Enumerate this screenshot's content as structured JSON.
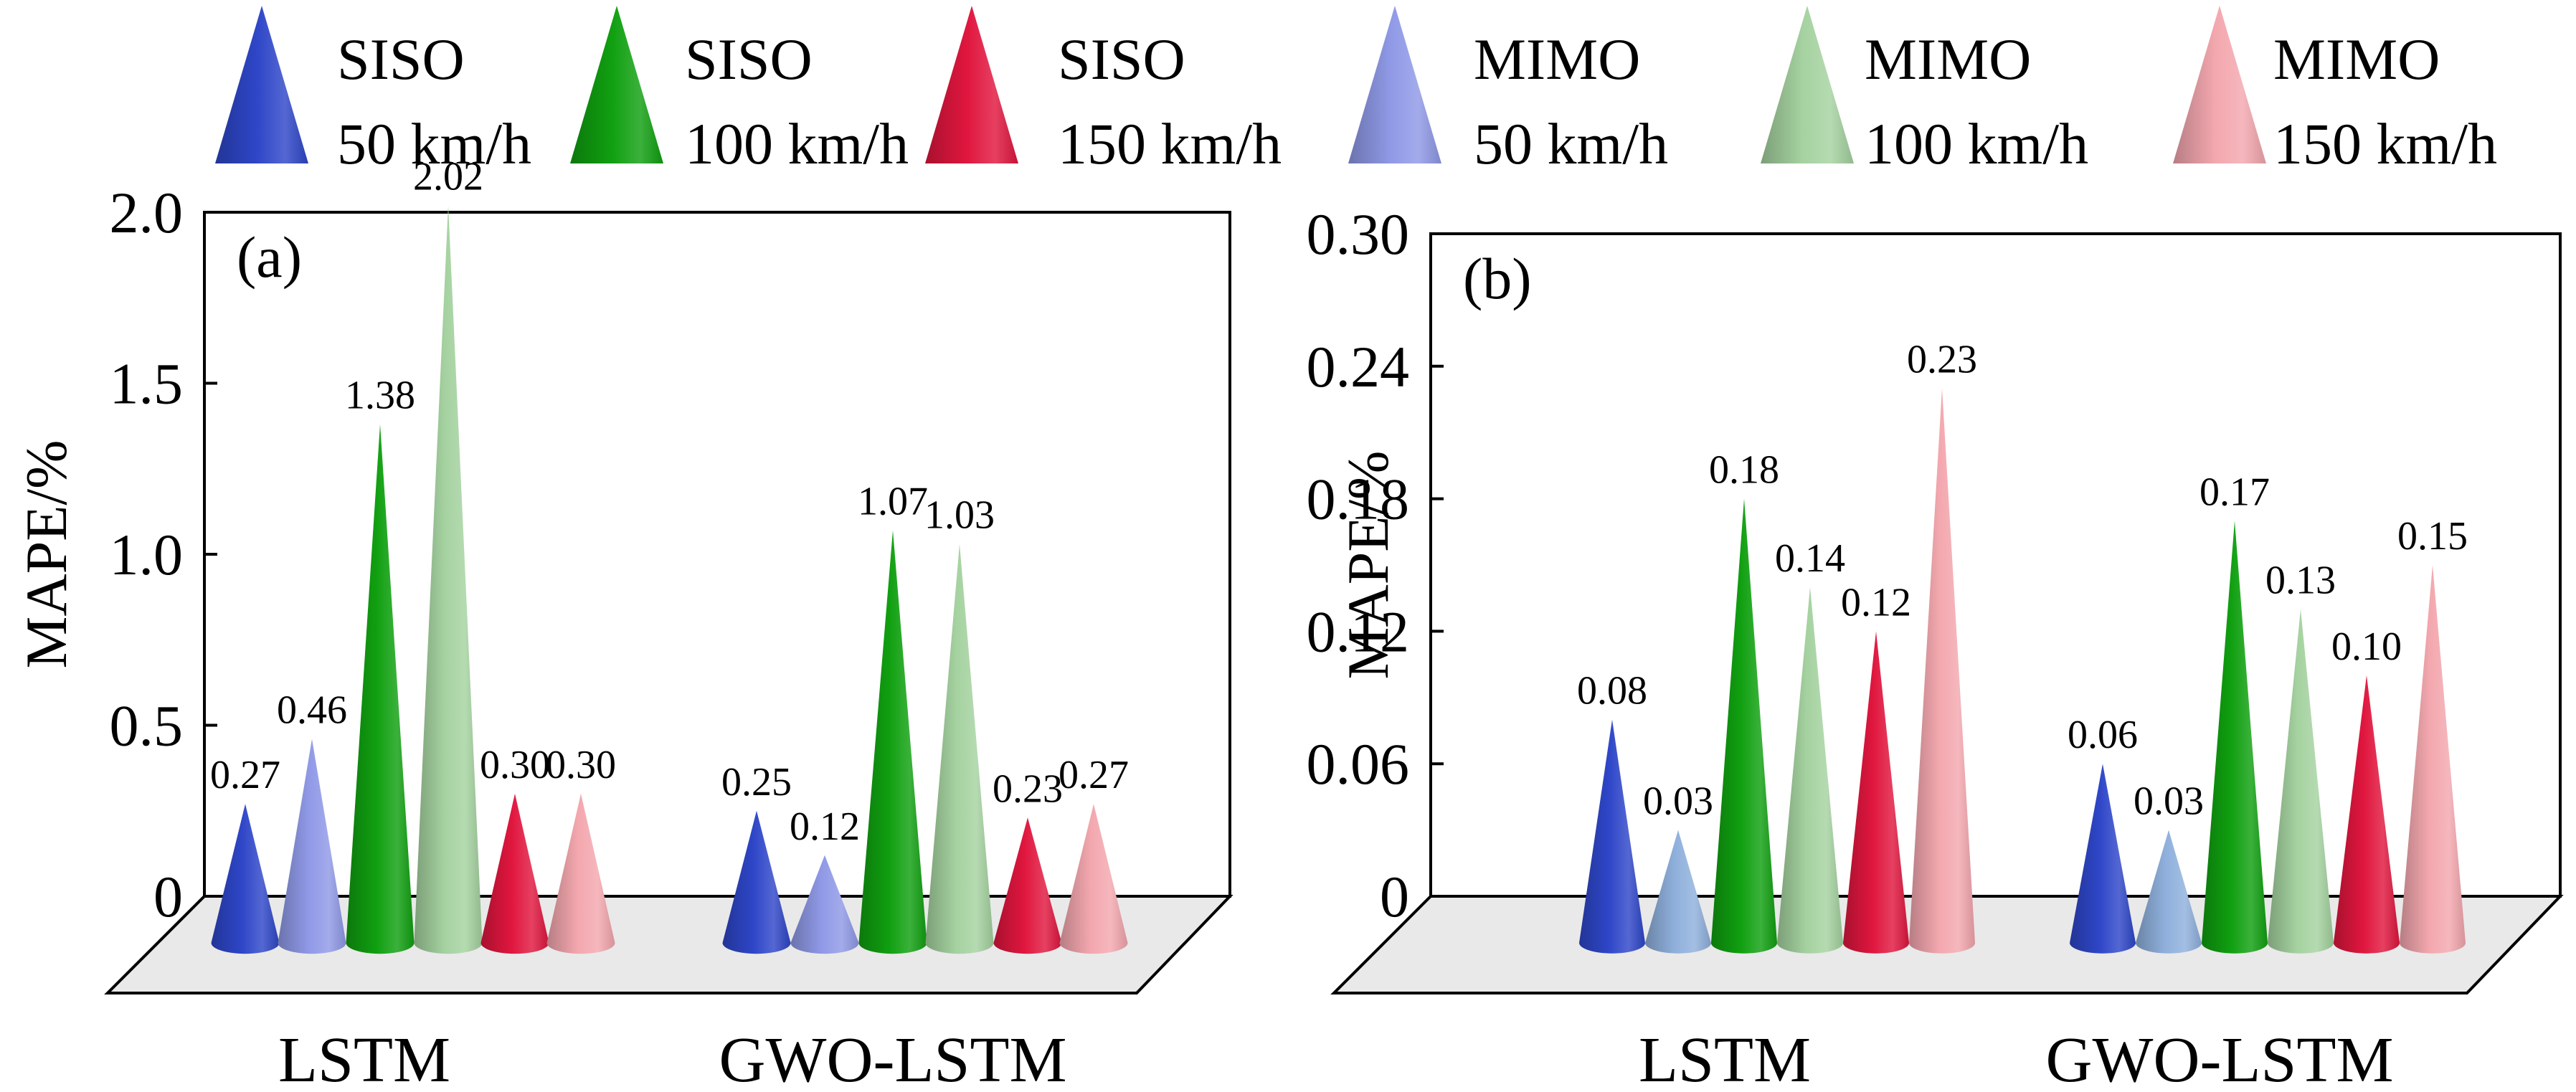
{
  "legend": [
    {
      "line1": "SISO",
      "line2": "50 km/h",
      "color": "#2E46C8"
    },
    {
      "line1": "SISO",
      "line2": "100 km/h",
      "color": "#10A010"
    },
    {
      "line1": "SISO",
      "line2": "150 km/h",
      "color": "#E0163E"
    },
    {
      "line1": "MIMO",
      "line2": "50 km/h",
      "color": "#8F99E6"
    },
    {
      "line1": "MIMO",
      "line2": "100 km/h",
      "color": "#A5D2A0"
    },
    {
      "line1": "MIMO",
      "line2": "150 km/h",
      "color": "#F3A7AE"
    }
  ],
  "chart_data": [
    {
      "type": "bar",
      "panel_label": "(a)",
      "ylabel": "MAPE/%",
      "yticks": [
        "0",
        "0.5",
        "1.0",
        "1.5",
        "2.0"
      ],
      "ylim": [
        0,
        2.0
      ],
      "categories": [
        "LSTM",
        "GWO-LSTM"
      ],
      "bars": [
        {
          "group": 0,
          "series": "SISO 50 km/h",
          "value": 0.27,
          "label": "0.27",
          "color": "#2E46C8"
        },
        {
          "group": 0,
          "series": "MIMO 50 km/h",
          "value": 0.46,
          "label": "0.46",
          "color": "#8F99E6"
        },
        {
          "group": 0,
          "series": "SISO 100 km/h",
          "value": 1.38,
          "label": "1.38",
          "color": "#10A010"
        },
        {
          "group": 0,
          "series": "MIMO 100 km/h",
          "value": 2.02,
          "label": "2.02",
          "color": "#A5D2A0"
        },
        {
          "group": 0,
          "series": "SISO 150 km/h",
          "value": 0.3,
          "label": "0.30",
          "color": "#E0163E"
        },
        {
          "group": 0,
          "series": "MIMO 150 km/h",
          "value": 0.3,
          "label": "0.30",
          "color": "#F3A7AE"
        },
        {
          "group": 1,
          "series": "SISO 50 km/h",
          "value": 0.25,
          "label": "0.25",
          "color": "#2E46C8"
        },
        {
          "group": 1,
          "series": "MIMO 50 km/h",
          "value": 0.12,
          "label": "0.12",
          "color": "#8F99E6"
        },
        {
          "group": 1,
          "series": "SISO 100 km/h",
          "value": 1.07,
          "label": "1.07",
          "color": "#10A010"
        },
        {
          "group": 1,
          "series": "MIMO 100 km/h",
          "value": 1.03,
          "label": "1.03",
          "color": "#A5D2A0"
        },
        {
          "group": 1,
          "series": "SISO 150 km/h",
          "value": 0.23,
          "label": "0.23",
          "color": "#E0163E"
        },
        {
          "group": 1,
          "series": "MIMO 150 km/h",
          "value": 0.27,
          "label": "0.27",
          "color": "#F3A7AE"
        }
      ]
    },
    {
      "type": "bar",
      "panel_label": "(b)",
      "ylabel": "MAPE/%",
      "yticks": [
        "0",
        "0.06",
        "0.12",
        "0.18",
        "0.24",
        "0.30"
      ],
      "ylim": [
        0,
        0.3
      ],
      "categories": [
        "LSTM",
        "GWO-LSTM"
      ],
      "bars": [
        {
          "group": 0,
          "series": "SISO 50 km/h",
          "value": 0.08,
          "label": "0.08",
          "color": "#2E46C8"
        },
        {
          "group": 0,
          "series": "MIMO 50 km/h",
          "value": 0.03,
          "label": "0.03",
          "color": "#8FB0DC"
        },
        {
          "group": 0,
          "series": "SISO 100 km/h",
          "value": 0.18,
          "label": "0.18",
          "color": "#10A010"
        },
        {
          "group": 0,
          "series": "MIMO 100 km/h",
          "value": 0.14,
          "label": "0.14",
          "color": "#A5D2A0"
        },
        {
          "group": 0,
          "series": "SISO 150 km/h",
          "value": 0.12,
          "label": "0.12",
          "color": "#E0163E"
        },
        {
          "group": 0,
          "series": "MIMO 150 km/h",
          "value": 0.23,
          "label": "0.23",
          "color": "#F3A7AE"
        },
        {
          "group": 1,
          "series": "SISO 50 km/h",
          "value": 0.06,
          "label": "0.06",
          "color": "#2E46C8"
        },
        {
          "group": 1,
          "series": "MIMO 50 km/h",
          "value": 0.03,
          "label": "0.03",
          "color": "#8FB0DC"
        },
        {
          "group": 1,
          "series": "SISO 100 km/h",
          "value": 0.17,
          "label": "0.17",
          "color": "#10A010"
        },
        {
          "group": 1,
          "series": "MIMO 100 km/h",
          "value": 0.13,
          "label": "0.13",
          "color": "#A5D2A0"
        },
        {
          "group": 1,
          "series": "SISO 150 km/h",
          "value": 0.1,
          "label": "0.10",
          "color": "#E0163E"
        },
        {
          "group": 1,
          "series": "MIMO 150 km/h",
          "value": 0.15,
          "label": "0.15",
          "color": "#F3A7AE"
        }
      ]
    }
  ]
}
